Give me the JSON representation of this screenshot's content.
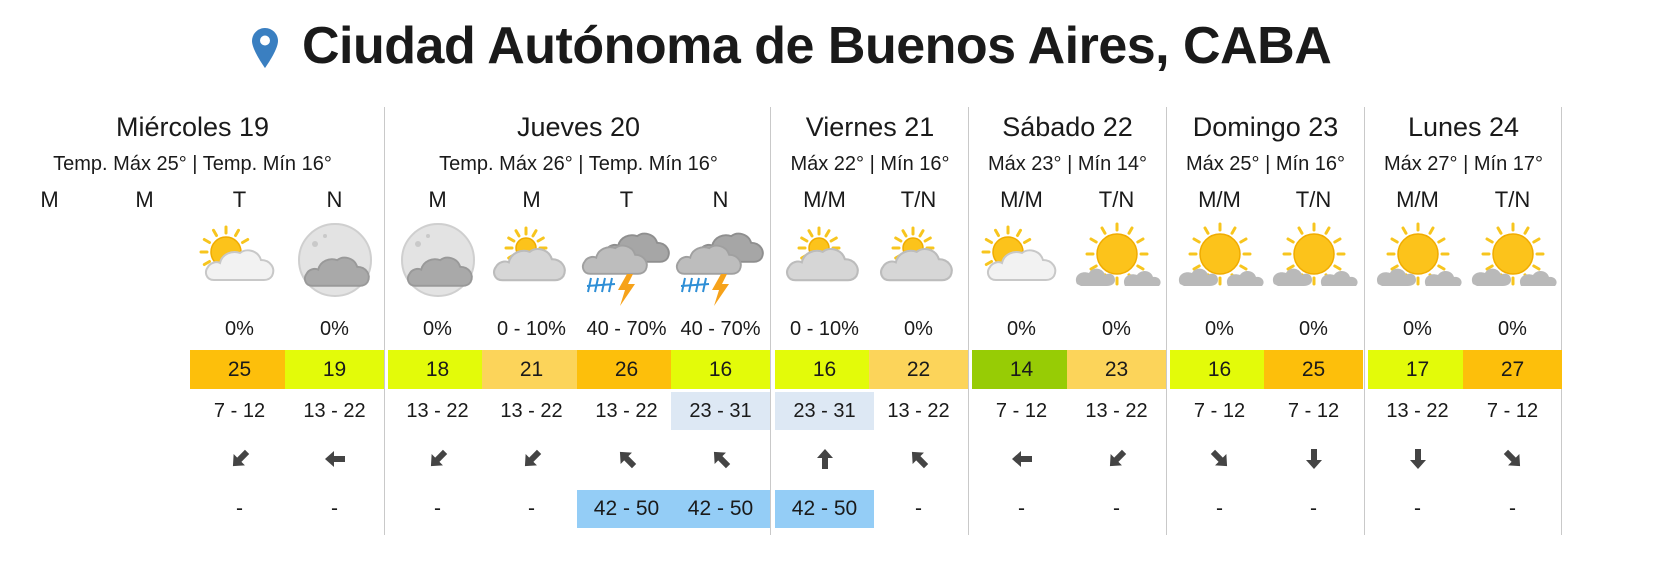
{
  "location": {
    "name": "Ciudad Autónoma de Buenos Aires, CABA",
    "icon": "location-pin-icon",
    "pin_color": "#3a7fc1"
  },
  "colors": {
    "temp_scale": {
      "14": "#97cc05",
      "16": "#e3fb09",
      "17": "#e3fb09",
      "18": "#e3fb09",
      "19": "#e3fb09",
      "21": "#fcd45a",
      "22": "#fcd45a",
      "23": "#fcd45a",
      "25": "#fdbf0b",
      "26": "#fdbf0b",
      "27": "#fdbf0b"
    },
    "uv_highlight": "#dde8f4",
    "gust_highlight": "#94cdf6",
    "divider": "#c9c9c9"
  },
  "days": [
    {
      "name": "Miércoles 19",
      "temps": "Temp. Máx 25° | Temp. Mín 16°",
      "periods": [
        {
          "label": "M",
          "icon": "",
          "prob": "",
          "temp": "",
          "uv": "",
          "wind": "",
          "gust": ""
        },
        {
          "label": "M",
          "icon": "",
          "prob": "",
          "temp": "",
          "uv": "",
          "wind": "",
          "gust": ""
        },
        {
          "label": "T",
          "icon": "partly-cloudy-sun-icon",
          "prob": "0%",
          "temp": "25",
          "uv": "7 - 12",
          "wind": "arrow-down-left-icon",
          "gust": "-"
        },
        {
          "label": "N",
          "icon": "night-cloudy-moon-icon",
          "prob": "0%",
          "temp": "19",
          "uv": "13 - 22",
          "wind": "arrow-left-icon",
          "gust": "-"
        }
      ]
    },
    {
      "name": "Jueves 20",
      "temps": "Temp. Máx 26° | Temp. Mín 16°",
      "periods": [
        {
          "label": "M",
          "icon": "night-cloudy-moon-icon",
          "prob": "0%",
          "temp": "18",
          "uv": "13 - 22",
          "wind": "arrow-down-left-icon",
          "gust": "-"
        },
        {
          "label": "M",
          "icon": "mostly-cloudy-sun-icon",
          "prob": "0 - 10%",
          "temp": "21",
          "uv": "13 - 22",
          "wind": "arrow-down-left-icon",
          "gust": "-"
        },
        {
          "label": "T",
          "icon": "thunderstorm-icon",
          "prob": "40 - 70%",
          "temp": "26",
          "uv": "13 - 22",
          "wind": "arrow-up-left-icon",
          "gust": "42 - 50"
        },
        {
          "label": "N",
          "icon": "thunderstorm-icon",
          "prob": "40 - 70%",
          "temp": "16",
          "uv": "23 - 31",
          "wind": "arrow-up-left-icon",
          "gust": "42 - 50"
        }
      ]
    },
    {
      "name": "Viernes 21",
      "temps": "Máx 22° | Mín 16°",
      "periods": [
        {
          "label": "M/M",
          "icon": "mostly-cloudy-sun-icon",
          "prob": "0 - 10%",
          "temp": "16",
          "uv": "23 - 31",
          "wind": "arrow-up-icon",
          "gust": "42 - 50"
        },
        {
          "label": "T/N",
          "icon": "mostly-cloudy-sun-icon",
          "prob": "0%",
          "temp": "22",
          "uv": "13 - 22",
          "wind": "arrow-up-left-icon",
          "gust": "-"
        }
      ]
    },
    {
      "name": "Sábado 22",
      "temps": "Máx 23° | Mín 14°",
      "periods": [
        {
          "label": "M/M",
          "icon": "partly-cloudy-sun-icon",
          "prob": "0%",
          "temp": "14",
          "uv": "7 - 12",
          "wind": "arrow-left-icon",
          "gust": "-"
        },
        {
          "label": "T/N",
          "icon": "sunny-with-clouds-icon",
          "prob": "0%",
          "temp": "23",
          "uv": "13 - 22",
          "wind": "arrow-down-left-icon",
          "gust": "-"
        }
      ]
    },
    {
      "name": "Domingo 23",
      "temps": "Máx 25° | Mín 16°",
      "periods": [
        {
          "label": "M/M",
          "icon": "sunny-with-clouds-icon",
          "prob": "0%",
          "temp": "16",
          "uv": "7 - 12",
          "wind": "arrow-down-right-icon",
          "gust": "-"
        },
        {
          "label": "T/N",
          "icon": "sunny-with-clouds-icon",
          "prob": "0%",
          "temp": "25",
          "uv": "7 - 12",
          "wind": "arrow-down-icon",
          "gust": "-"
        }
      ]
    },
    {
      "name": "Lunes 24",
      "temps": "Máx 27° | Mín 17°",
      "periods": [
        {
          "label": "M/M",
          "icon": "sunny-with-clouds-icon",
          "prob": "0%",
          "temp": "17",
          "uv": "13 - 22",
          "wind": "arrow-down-icon",
          "gust": "-"
        },
        {
          "label": "T/N",
          "icon": "sunny-with-clouds-icon",
          "prob": "0%",
          "temp": "27",
          "uv": "7 - 12",
          "wind": "arrow-down-right-icon",
          "gust": "-"
        }
      ]
    }
  ]
}
